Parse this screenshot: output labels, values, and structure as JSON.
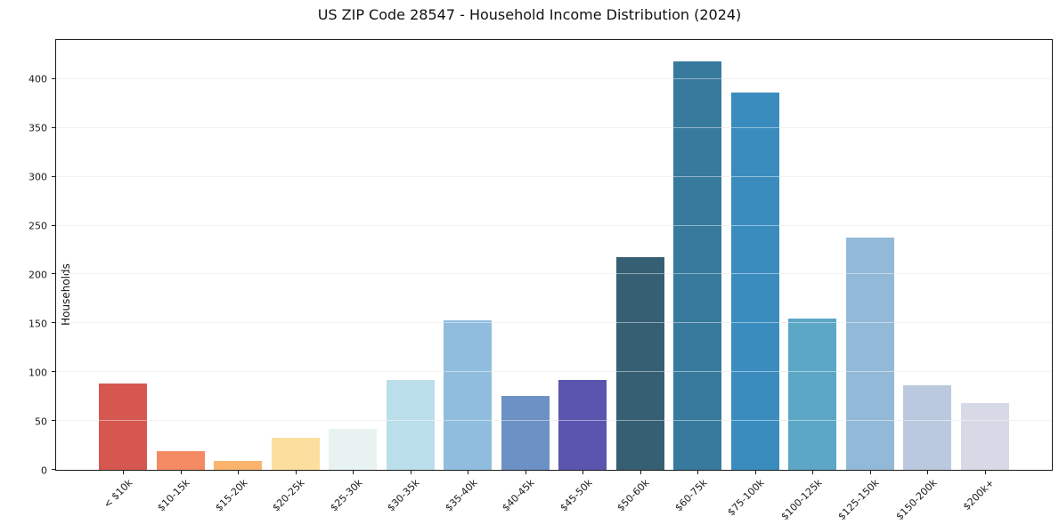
{
  "chart_data": {
    "type": "bar",
    "title": "US ZIP Code 28547 - Household Income Distribution (2024)",
    "xlabel": "",
    "ylabel": "Households",
    "categories": [
      "< $10k",
      "$10-15k",
      "$15-20k",
      "$20-25k",
      "$25-30k",
      "$30-35k",
      "$35-40k",
      "$40-45k",
      "$45-50k",
      "$50-60k",
      "$60-75k",
      "$75-100k",
      "$100-125k",
      "$125-150k",
      "$150-200k",
      "$200k+"
    ],
    "values": [
      88,
      19,
      9,
      33,
      42,
      92,
      153,
      76,
      92,
      218,
      418,
      386,
      155,
      238,
      87,
      68
    ],
    "bar_colors": [
      "#d5574f",
      "#f48a63",
      "#fab46e",
      "#fcdf9e",
      "#e8f3f1",
      "#bbdfea",
      "#90bddd",
      "#6c91c4",
      "#5a55ae",
      "#365f73",
      "#38799e",
      "#3a8cbe",
      "#5ca6c6",
      "#93b9d8",
      "#bac9de",
      "#d7dae6"
    ],
    "yticks": [
      0,
      50,
      100,
      150,
      200,
      250,
      300,
      350,
      400
    ],
    "ylim": [
      0,
      440
    ],
    "grid": "horizontal",
    "grid_color": "#e8e8e8",
    "legend_position": "none",
    "background_color": "#ffffff"
  }
}
